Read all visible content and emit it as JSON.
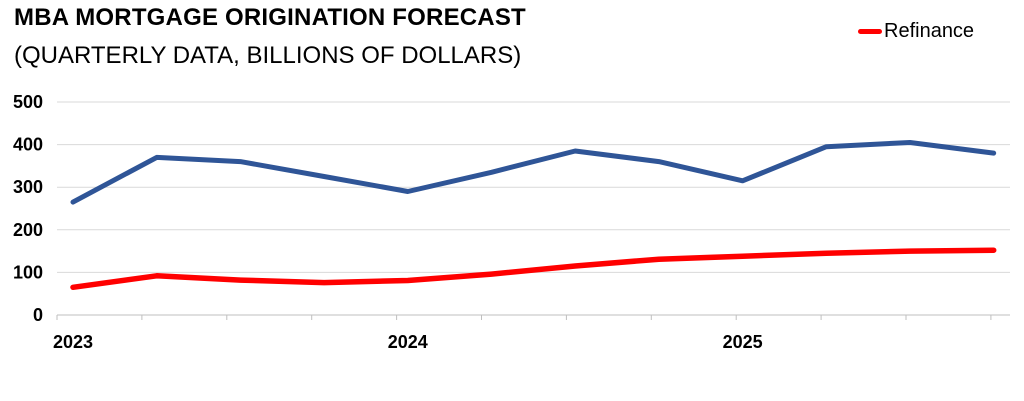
{
  "header": {
    "title": "MBA MORTGAGE ORIGINATION FORECAST",
    "subtitle": "(QUARTERLY DATA, BILLIONS OF DOLLARS)"
  },
  "legend": {
    "items": [
      {
        "label": "Refinance",
        "color": "#ff0000"
      }
    ]
  },
  "chart_data": {
    "type": "line",
    "title": "MBA MORTGAGE ORIGINATION FORECAST",
    "subtitle": "(QUARTERLY DATA, BILLIONS OF DOLLARS)",
    "x": [
      "2023 Q1",
      "2023 Q2",
      "2023 Q3",
      "2023 Q4",
      "2024 Q1",
      "2024 Q2",
      "2024 Q3",
      "2024 Q4",
      "2025 Q1",
      "2025 Q2",
      "2025 Q3",
      "2025 Q4"
    ],
    "x_axis_labels": [
      {
        "label": "2023",
        "point_index": 0
      },
      {
        "label": "2024",
        "point_index": 4
      },
      {
        "label": "2025",
        "point_index": 8
      }
    ],
    "series": [
      {
        "name": "",
        "color": "#2f5597",
        "stroke_width": 5,
        "values": [
          265,
          370,
          360,
          325,
          290,
          335,
          385,
          360,
          315,
          395,
          405,
          380
        ]
      },
      {
        "name": "Refinance",
        "color": "#ff0000",
        "stroke_width": 5.5,
        "values": [
          65,
          92,
          82,
          76,
          81,
          96,
          115,
          131,
          138,
          145,
          150,
          152
        ]
      }
    ],
    "ylim": [
      0,
      500
    ],
    "yticks": [
      0,
      100,
      200,
      300,
      400,
      500
    ],
    "grid": "horizontal",
    "legend_position": "top-right",
    "legend_visible_entries": [
      "Refinance"
    ]
  },
  "colors": {
    "background": "#ffffff",
    "gridline": "#d9d9d9",
    "axis": "#bfbfbf",
    "text": "#000000",
    "blue_series": "#2f5597",
    "refinance_series": "#ff0000"
  }
}
